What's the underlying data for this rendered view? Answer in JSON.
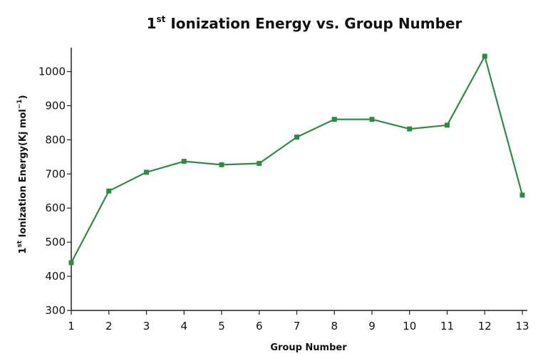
{
  "chart_data": {
    "type": "line",
    "title": {
      "main_prefix": "1",
      "main_sup": "st",
      "main_suffix": " Ionization Energy vs. Group Number"
    },
    "xlabel": "Group Number",
    "ylabel": {
      "prefix": "1",
      "sup": "st",
      "middle": " Ionization Energy(Kj mol",
      "unit_sup": "−1",
      "suffix": ")"
    },
    "x": [
      1,
      2,
      3,
      4,
      5,
      6,
      7,
      8,
      9,
      10,
      11,
      12,
      13
    ],
    "x_tick_labels": [
      "1",
      "2",
      "3",
      "4",
      "5",
      "6",
      "7",
      "8",
      "9",
      "10",
      "11",
      "12",
      "13"
    ],
    "y_tick_labels": [
      "300",
      "400",
      "500",
      "600",
      "700",
      "800",
      "900",
      "1000"
    ],
    "y_ticks": [
      300,
      400,
      500,
      600,
      700,
      800,
      900,
      1000
    ],
    "ylim": [
      300,
      1070
    ],
    "xlim": [
      1,
      13
    ],
    "grid": false,
    "series": [
      {
        "values": [
          440,
          650,
          705,
          737,
          727,
          731,
          808,
          860,
          860,
          832,
          843,
          1045,
          638
        ],
        "color": "#2e8b43",
        "marker": "square"
      }
    ]
  }
}
